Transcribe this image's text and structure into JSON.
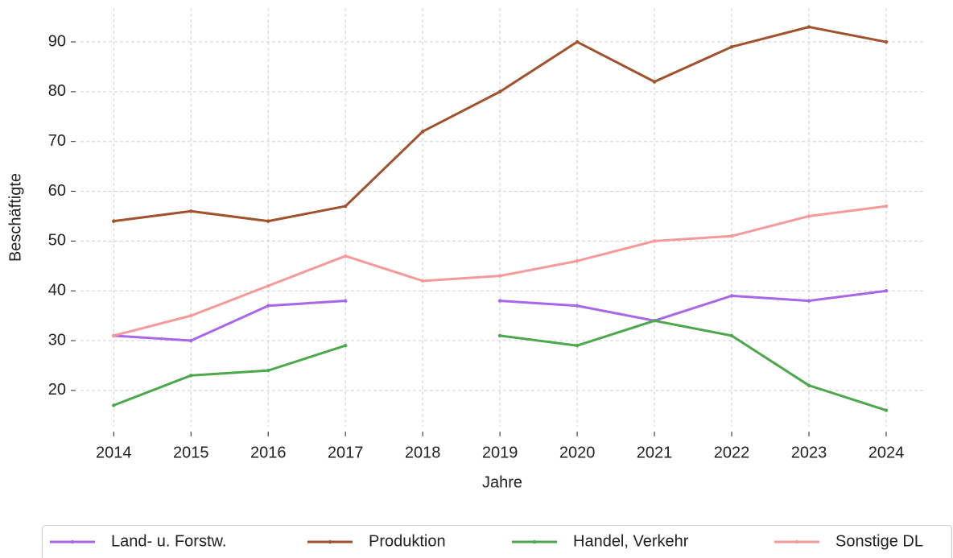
{
  "chart_data": {
    "type": "line",
    "x": [
      2014,
      2015,
      2016,
      2017,
      2018,
      2019,
      2020,
      2021,
      2022,
      2023,
      2024
    ],
    "xlim": [
      2013.57,
      2024.49
    ],
    "xticks": [
      2014,
      2015,
      2016,
      2017,
      2018,
      2019,
      2020,
      2021,
      2022,
      2023,
      2024
    ],
    "ylim": [
      12.7,
      96.8
    ],
    "yticks": [
      20,
      30,
      40,
      50,
      60,
      70,
      80,
      90
    ],
    "xlabel": "Jahre",
    "ylabel": "Beschäftigte",
    "grid": true,
    "legend": "bottom",
    "series": [
      {
        "name": "Land- u. Forstw.",
        "color": "#a866e8",
        "values": [
          31,
          30,
          37,
          38,
          null,
          38,
          37,
          34,
          39,
          38,
          40
        ]
      },
      {
        "name": "Produktion",
        "color": "#a0522d",
        "values": [
          54,
          56,
          54,
          57,
          72,
          80,
          90,
          82,
          89,
          93,
          90
        ]
      },
      {
        "name": "Handel, Verkehr",
        "color": "#4ca84c",
        "values": [
          17,
          23,
          24,
          29,
          null,
          31,
          29,
          34,
          31,
          21,
          16
        ]
      },
      {
        "name": "Sonstige DL",
        "color": "#f59a9a",
        "values": [
          31,
          35,
          41,
          47,
          42,
          43,
          46,
          50,
          51,
          55,
          57
        ]
      }
    ]
  }
}
